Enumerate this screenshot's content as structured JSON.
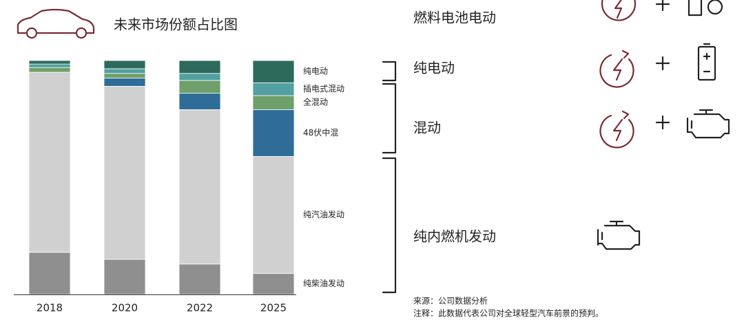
{
  "chart_data": {
    "type": "bar",
    "stacked": true,
    "title": "未来市场份额占比图",
    "categories": [
      "2018",
      "2020",
      "2022",
      "2025"
    ],
    "series": [
      {
        "name": "纯柴油发动",
        "color": "#8f8f8f",
        "values": [
          18,
          15,
          13,
          9
        ]
      },
      {
        "name": "纯汽油发动",
        "color": "#d0d0d0",
        "values": [
          77,
          74,
          66,
          50
        ]
      },
      {
        "name": "48伏中混",
        "color": "#2f6d98",
        "values": [
          0,
          3.5,
          7,
          20
        ]
      },
      {
        "name": "全混动",
        "color": "#6f9f6a",
        "values": [
          2,
          2,
          5.5,
          6
        ]
      },
      {
        "name": "插电式混动",
        "color": "#52a0a2",
        "values": [
          1.5,
          2,
          3,
          5.5
        ]
      },
      {
        "name": "纯电动",
        "color": "#2e6a5c",
        "values": [
          1.5,
          3.5,
          5.5,
          9.5
        ]
      }
    ],
    "ylim": [
      0,
      100
    ]
  },
  "right_panel": {
    "rows": [
      "燃料电池电动",
      "纯电动",
      "混动",
      "纯内燃机发动"
    ]
  },
  "footnotes": [
    "来源：公司数据分析",
    "注释：此数据代表公司对全球轻型汽车前景的预判。"
  ]
}
